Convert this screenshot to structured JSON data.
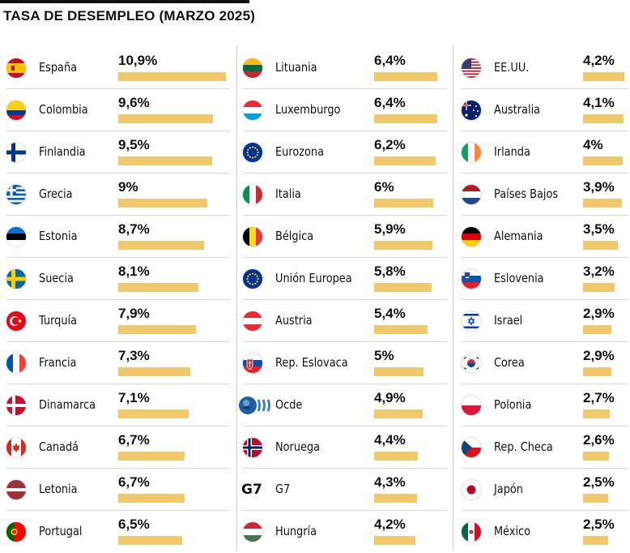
{
  "title": "TASA DE DESEMPLEO (MARZO 2025)",
  "colors": {
    "bar": "#efc96c",
    "separator": "#d9d9d9"
  },
  "chart_data": {
    "type": "bar",
    "title": "TASA DE DESEMPLEO (MARZO 2025)",
    "unit": "%",
    "xlim": [
      0,
      10.9
    ],
    "rows": [
      {
        "name": "España",
        "value": 10.9,
        "label": "10,9%",
        "icon": "spain-flag-icon"
      },
      {
        "name": "Colombia",
        "value": 9.6,
        "label": "9,6%",
        "icon": "colombia-flag-icon"
      },
      {
        "name": "Finlandia",
        "value": 9.5,
        "label": "9,5%",
        "icon": "finland-flag-icon"
      },
      {
        "name": "Grecia",
        "value": 9.0,
        "label": "9%",
        "icon": "greece-flag-icon"
      },
      {
        "name": "Estonia",
        "value": 8.7,
        "label": "8,7%",
        "icon": "estonia-flag-icon"
      },
      {
        "name": "Suecia",
        "value": 8.1,
        "label": "8,1%",
        "icon": "sweden-flag-icon"
      },
      {
        "name": "Turquía",
        "value": 7.9,
        "label": "7,9%",
        "icon": "turkey-flag-icon"
      },
      {
        "name": "Francia",
        "value": 7.3,
        "label": "7,3%",
        "icon": "france-flag-icon"
      },
      {
        "name": "Dinamarca",
        "value": 7.1,
        "label": "7,1%",
        "icon": "denmark-flag-icon"
      },
      {
        "name": "Canadá",
        "value": 6.7,
        "label": "6,7%",
        "icon": "canada-flag-icon"
      },
      {
        "name": "Letonia",
        "value": 6.7,
        "label": "6,7%",
        "icon": "latvia-flag-icon"
      },
      {
        "name": "Portugal",
        "value": 6.5,
        "label": "6,5%",
        "icon": "portugal-flag-icon"
      },
      {
        "name": "Lituania",
        "value": 6.4,
        "label": "6,4%",
        "icon": "lithuania-flag-icon"
      },
      {
        "name": "Luxemburgo",
        "value": 6.4,
        "label": "6,4%",
        "icon": "luxembourg-flag-icon"
      },
      {
        "name": "Eurozona",
        "value": 6.2,
        "label": "6,2%",
        "icon": "eu-flag-icon"
      },
      {
        "name": "Italia",
        "value": 6.0,
        "label": "6%",
        "icon": "italy-flag-icon"
      },
      {
        "name": "Bélgica",
        "value": 5.9,
        "label": "5,9%",
        "icon": "belgium-flag-icon"
      },
      {
        "name": "Unión Europea",
        "value": 5.8,
        "label": "5,8%",
        "icon": "eu-flag-icon"
      },
      {
        "name": "Austria",
        "value": 5.4,
        "label": "5,4%",
        "icon": "austria-flag-icon"
      },
      {
        "name": "Rep. Eslovaca",
        "value": 5.0,
        "label": "5%",
        "icon": "slovakia-flag-icon"
      },
      {
        "name": "Ocde",
        "value": 4.9,
        "label": "4,9%",
        "icon": "oecd-logo-icon"
      },
      {
        "name": "Noruega",
        "value": 4.4,
        "label": "4,4%",
        "icon": "norway-flag-icon"
      },
      {
        "name": "G7",
        "value": 4.3,
        "label": "4,3%",
        "icon": "g7-icon",
        "icon_text": "G7"
      },
      {
        "name": "Hungría",
        "value": 4.2,
        "label": "4,2%",
        "icon": "hungary-flag-icon"
      },
      {
        "name": "EE.UU.",
        "value": 4.2,
        "label": "4,2%",
        "icon": "usa-flag-icon"
      },
      {
        "name": "Australia",
        "value": 4.1,
        "label": "4,1%",
        "icon": "australia-flag-icon"
      },
      {
        "name": "Irlanda",
        "value": 4.0,
        "label": "4%",
        "icon": "ireland-flag-icon"
      },
      {
        "name": "Países Bajos",
        "value": 3.9,
        "label": "3,9%",
        "icon": "netherlands-flag-icon"
      },
      {
        "name": "Alemania",
        "value": 3.5,
        "label": "3,5%",
        "icon": "germany-flag-icon"
      },
      {
        "name": "Eslovenia",
        "value": 3.2,
        "label": "3,2%",
        "icon": "slovenia-flag-icon"
      },
      {
        "name": "Israel",
        "value": 2.9,
        "label": "2,9%",
        "icon": "israel-flag-icon"
      },
      {
        "name": "Corea",
        "value": 2.9,
        "label": "2,9%",
        "icon": "korea-flag-icon"
      },
      {
        "name": "Polonia",
        "value": 2.7,
        "label": "2,7%",
        "icon": "poland-flag-icon"
      },
      {
        "name": "Rep. Checa",
        "value": 2.6,
        "label": "2,6%",
        "icon": "czechia-flag-icon"
      },
      {
        "name": "Japón",
        "value": 2.5,
        "label": "2,5%",
        "icon": "japan-flag-icon"
      },
      {
        "name": "México",
        "value": 2.5,
        "label": "2,5%",
        "icon": "mexico-flag-icon"
      }
    ]
  }
}
